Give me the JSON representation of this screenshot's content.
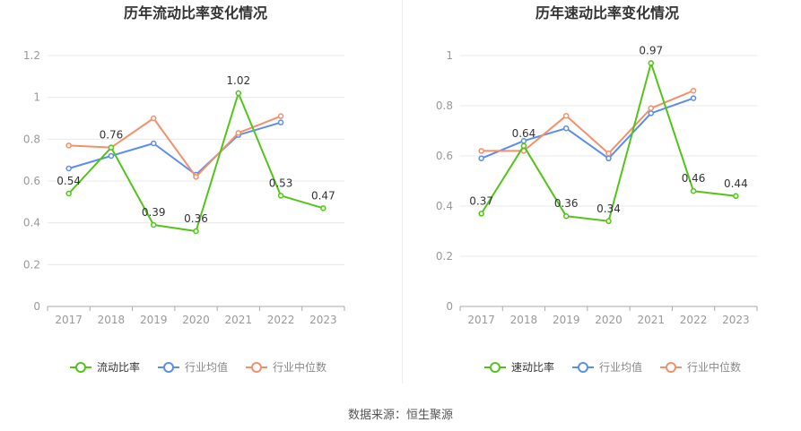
{
  "source_text": "数据来源：恒生聚源",
  "colors": {
    "primary": "#52c41a",
    "avg": "#5b8def",
    "median": "#f4906a",
    "axis": "#999999",
    "grid": "#e8e8e8",
    "label": "#333333"
  },
  "chart_data": [
    {
      "type": "line",
      "title": "历年流动比率变化情况",
      "categories": [
        "2017",
        "2018",
        "2019",
        "2020",
        "2021",
        "2022",
        "2023"
      ],
      "ylim": [
        0,
        1.2
      ],
      "yticks": [
        "0",
        "0.2",
        "0.4",
        "0.6",
        "0.8",
        "1",
        "1.2"
      ],
      "grid": true,
      "legend_position": "bottom",
      "series": [
        {
          "name": "流动比率",
          "color": "#52c41a",
          "values": [
            0.54,
            0.76,
            0.39,
            0.36,
            1.02,
            0.53,
            0.47
          ],
          "labels": [
            "0.54",
            "0.76",
            "0.39",
            "0.36",
            "1.02",
            "0.53",
            "0.47"
          ]
        },
        {
          "name": "行业均值",
          "color": "#5b8def",
          "values": [
            0.66,
            0.72,
            0.78,
            0.63,
            0.82,
            0.88,
            null
          ]
        },
        {
          "name": "行业中位数",
          "color": "#f4906a",
          "values": [
            0.77,
            0.76,
            0.9,
            0.62,
            0.83,
            0.91,
            null
          ]
        }
      ]
    },
    {
      "type": "line",
      "title": "历年速动比率变化情况",
      "categories": [
        "2017",
        "2018",
        "2019",
        "2020",
        "2021",
        "2022",
        "2023"
      ],
      "ylim": [
        0,
        1
      ],
      "yticks": [
        "0",
        "0.2",
        "0.4",
        "0.6",
        "0.8",
        "1"
      ],
      "grid": true,
      "legend_position": "bottom",
      "series": [
        {
          "name": "速动比率",
          "color": "#52c41a",
          "values": [
            0.37,
            0.64,
            0.36,
            0.34,
            0.97,
            0.46,
            0.44
          ],
          "labels": [
            "0.37",
            "0.64",
            "0.36",
            "0.34",
            "0.97",
            "0.46",
            "0.44"
          ]
        },
        {
          "name": "行业均值",
          "color": "#5b8def",
          "values": [
            0.59,
            0.66,
            0.71,
            0.59,
            0.77,
            0.83,
            null
          ]
        },
        {
          "name": "行业中位数",
          "color": "#f4906a",
          "values": [
            0.62,
            0.62,
            0.76,
            0.61,
            0.79,
            0.86,
            null
          ]
        }
      ]
    }
  ]
}
